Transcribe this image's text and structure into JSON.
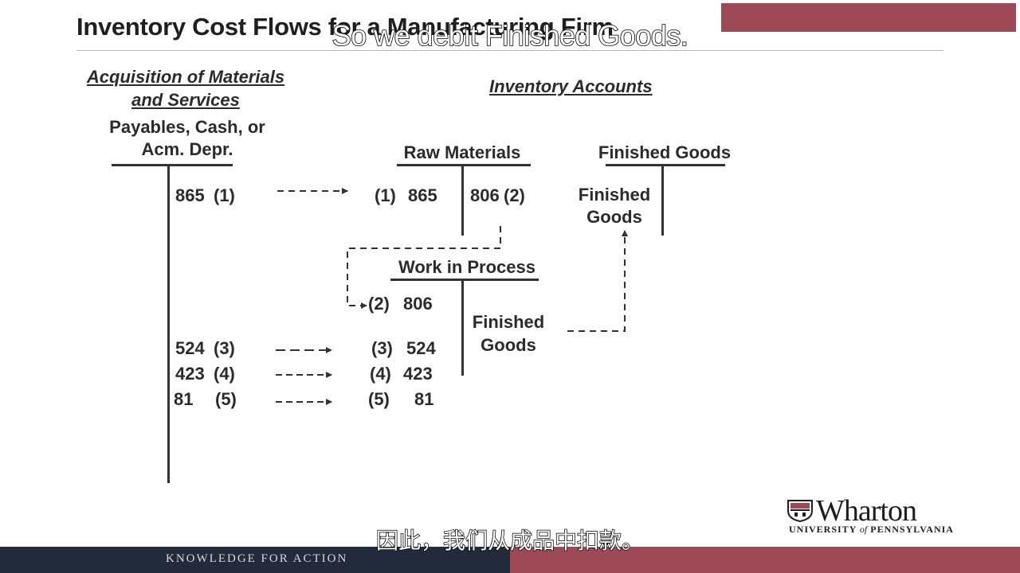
{
  "slide": {
    "title": "Inventory Cost Flows for a Manufacturing Firm",
    "caption_en": "So we debit Finished Goods.",
    "caption_zh": "因此，我们从成品中扣款。",
    "footer": "KNOWLEDGE FOR ACTION",
    "colors": {
      "accent": "#9d4a56",
      "footer_dark": "#222a3b",
      "text": "#2b2b2b"
    }
  },
  "acquisition": {
    "heading_line1": "Acquisition of Materials",
    "heading_line2": "and Services",
    "account_line1": "Payables, Cash, or",
    "account_line2": "Acm. Depr.",
    "entries": [
      {
        "amount": "865",
        "ref": "(1)"
      },
      {
        "amount": "524",
        "ref": "(3)"
      },
      {
        "amount": "423",
        "ref": "(4)"
      },
      {
        "amount": "81",
        "ref": "(5)"
      }
    ]
  },
  "inventory": {
    "heading": "Inventory Accounts",
    "raw_materials": {
      "title": "Raw Materials",
      "debit": {
        "ref": "(1)",
        "amount": "865"
      },
      "credit": {
        "amount": "806",
        "ref": "(2)"
      }
    },
    "work_in_process": {
      "title": "Work in Process",
      "debits": [
        {
          "ref": "(2)",
          "amount": "806"
        },
        {
          "ref": "(3)",
          "amount": "524"
        },
        {
          "ref": "(4)",
          "amount": "423"
        },
        {
          "ref": "(5)",
          "amount": "81"
        }
      ],
      "credit_line1": "Finished",
      "credit_line2": "Goods"
    },
    "finished_goods": {
      "title": "Finished Goods",
      "debit_line1": "Finished",
      "debit_line2": "Goods"
    }
  },
  "logo": {
    "name": "Wharton",
    "sub_part1": "UNIVERSITY",
    "sub_part2": "of",
    "sub_part3": "PENNSYLVANIA",
    "crest_icon": "shield-crest-icon"
  }
}
